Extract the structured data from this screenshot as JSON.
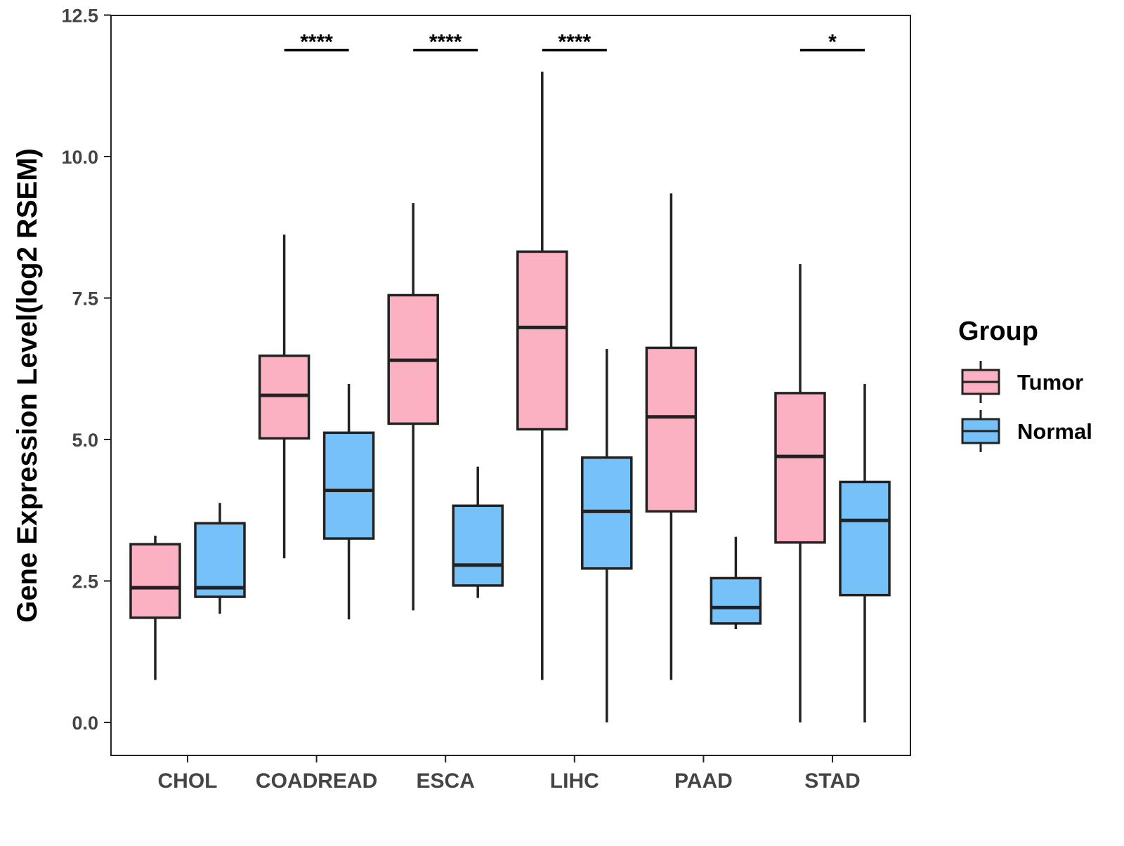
{
  "chart_data": {
    "type": "boxplot",
    "title": "",
    "xlabel": "",
    "ylabel": "Gene Expression Level(log2 RSEM)",
    "ylim": [
      -0.3,
      12.5
    ],
    "yticks": [
      "0.0",
      "2.5",
      "5.0",
      "7.5",
      "10.0",
      "12.5"
    ],
    "categories": [
      "CHOL",
      "COADREAD",
      "ESCA",
      "LIHC",
      "PAAD",
      "STAD"
    ],
    "legend": {
      "title": "Group",
      "position": "right",
      "entries": [
        {
          "name": "Tumor",
          "color": "#FBB1C2"
        },
        {
          "name": "Normal",
          "color": "#76C1F7"
        }
      ]
    },
    "series": [
      {
        "name": "Tumor",
        "color": "#FBB1C2",
        "boxes": [
          {
            "category": "CHOL",
            "min": 0.75,
            "q1": 1.85,
            "median": 2.38,
            "q3": 3.15,
            "max": 3.3
          },
          {
            "category": "COADREAD",
            "min": 2.9,
            "q1": 5.02,
            "median": 5.78,
            "q3": 6.48,
            "max": 8.62
          },
          {
            "category": "ESCA",
            "min": 1.98,
            "q1": 5.28,
            "median": 6.4,
            "q3": 7.55,
            "max": 9.18
          },
          {
            "category": "LIHC",
            "min": 0.75,
            "q1": 5.18,
            "median": 6.98,
            "q3": 8.32,
            "max": 11.5
          },
          {
            "category": "PAAD",
            "min": 0.75,
            "q1": 3.73,
            "median": 5.4,
            "q3": 6.62,
            "max": 9.35
          },
          {
            "category": "STAD",
            "min": 0.0,
            "q1": 3.18,
            "median": 4.7,
            "q3": 5.82,
            "max": 8.1
          }
        ]
      },
      {
        "name": "Normal",
        "color": "#76C1F7",
        "boxes": [
          {
            "category": "CHOL",
            "min": 1.92,
            "q1": 2.22,
            "median": 2.38,
            "q3": 3.52,
            "max": 3.88
          },
          {
            "category": "COADREAD",
            "min": 1.82,
            "q1": 3.25,
            "median": 4.1,
            "q3": 5.12,
            "max": 5.98
          },
          {
            "category": "ESCA",
            "min": 2.2,
            "q1": 2.42,
            "median": 2.78,
            "q3": 3.83,
            "max": 4.52
          },
          {
            "category": "LIHC",
            "min": 0.0,
            "q1": 2.72,
            "median": 3.73,
            "q3": 4.68,
            "max": 6.6
          },
          {
            "category": "PAAD",
            "min": 1.65,
            "q1": 1.75,
            "median": 2.03,
            "q3": 2.55,
            "max": 3.28
          },
          {
            "category": "STAD",
            "min": 0.0,
            "q1": 2.25,
            "median": 3.57,
            "q3": 4.25,
            "max": 5.98
          }
        ]
      }
    ],
    "significance": [
      {
        "category": "COADREAD",
        "label": "****",
        "y": 11.88
      },
      {
        "category": "ESCA",
        "label": "****",
        "y": 11.88
      },
      {
        "category": "LIHC",
        "label": "****",
        "y": 11.88
      },
      {
        "category": "STAD",
        "label": "*",
        "y": 11.88
      }
    ]
  }
}
